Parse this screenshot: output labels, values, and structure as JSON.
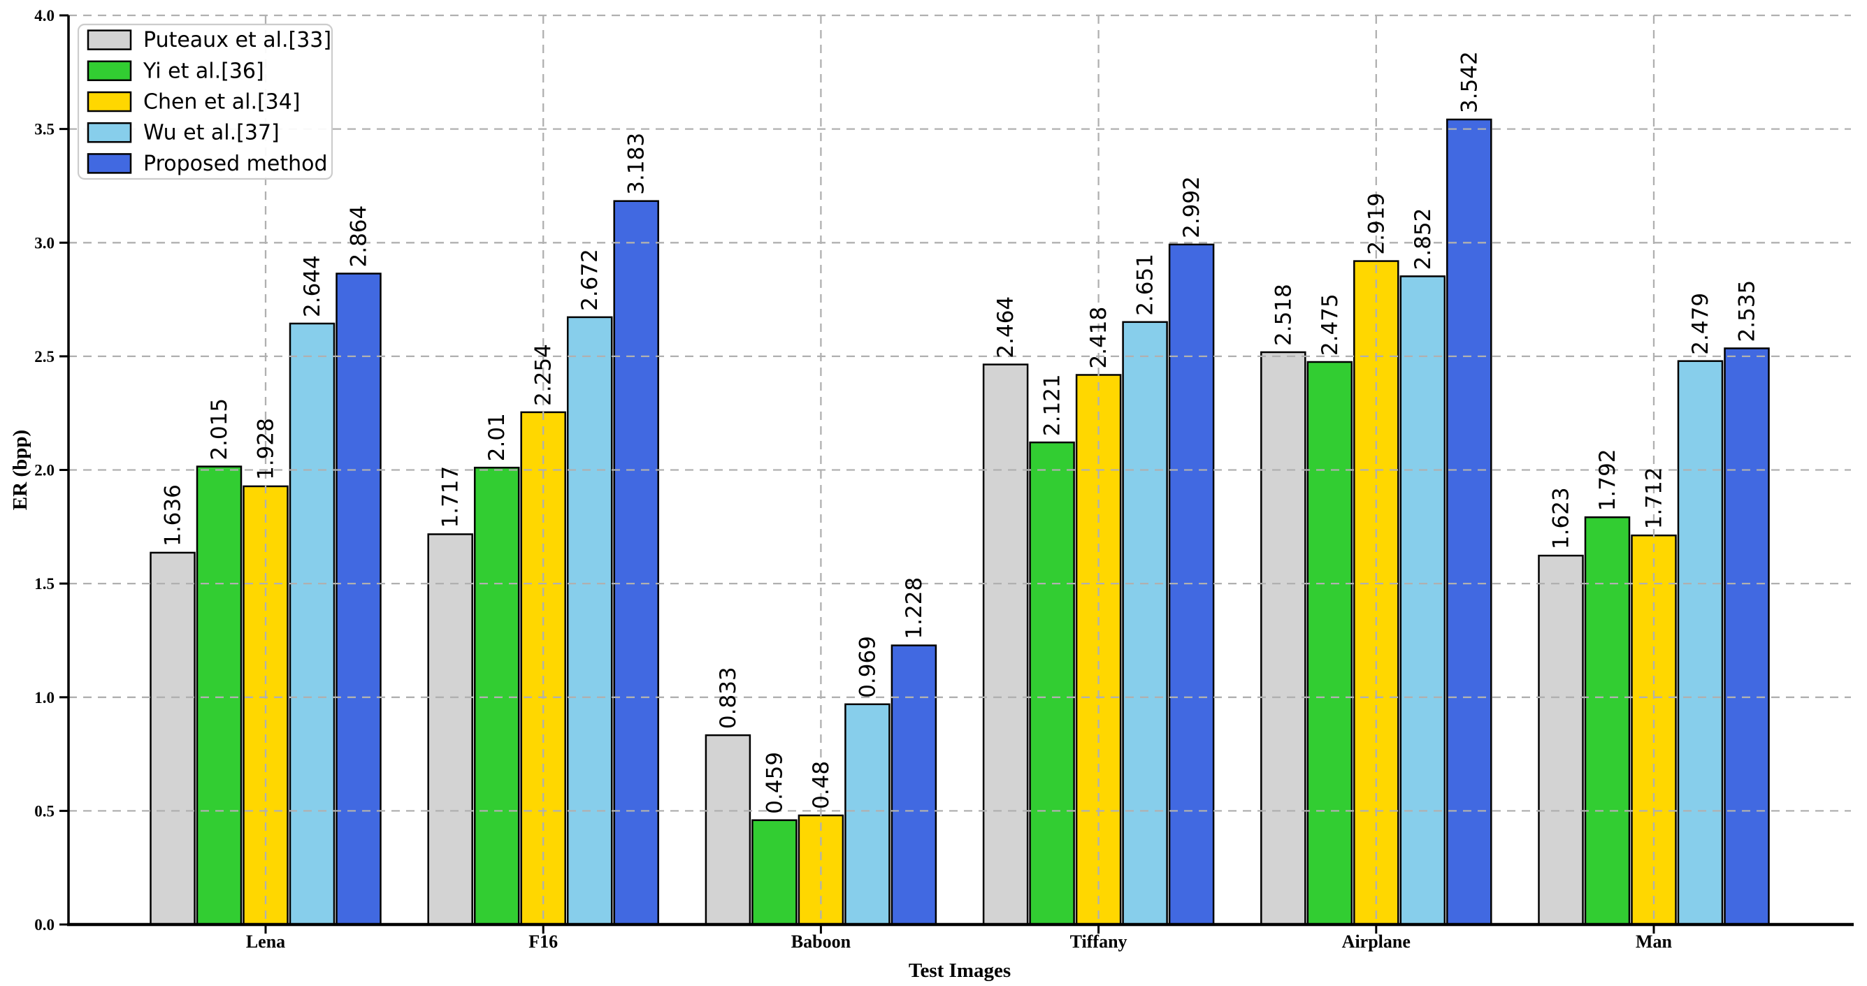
{
  "figure": {
    "background": "#ffffff",
    "plot_background": "#ffffff"
  },
  "chart_data": {
    "type": "bar",
    "title": "",
    "xlabel": "Test Images",
    "ylabel": "ER (bpp)",
    "categories": [
      "Lena",
      "F16",
      "Baboon",
      "Tiffany",
      "Airplane",
      "Man"
    ],
    "series": [
      {
        "name": "Puteaux et al.[33]",
        "color": "#d3d3d3",
        "values": [
          1.636,
          1.717,
          0.833,
          2.464,
          2.518,
          1.623
        ],
        "labels": [
          "1.636",
          "1.717",
          "0.833",
          "2.464",
          "2.518",
          "1.623"
        ]
      },
      {
        "name": "Yi et al.[36]",
        "color": "#32cd32",
        "values": [
          2.015,
          2.01,
          0.459,
          2.121,
          2.475,
          1.792
        ],
        "labels": [
          "2.015",
          "2.01",
          "0.459",
          "2.121",
          "2.475",
          "1.792"
        ]
      },
      {
        "name": "Chen et al.[34]",
        "color": "#ffd700",
        "values": [
          1.928,
          2.254,
          0.48,
          2.418,
          2.919,
          1.712
        ],
        "labels": [
          "1.928",
          "2.254",
          "0.48",
          "2.418",
          "2.919",
          "1.712"
        ]
      },
      {
        "name": "Wu et al.[37]",
        "color": "#87ceeb",
        "values": [
          2.644,
          2.672,
          0.969,
          2.651,
          2.852,
          2.479
        ],
        "labels": [
          "2.644",
          "2.672",
          "0.969",
          "2.651",
          "2.852",
          "2.479"
        ]
      },
      {
        "name": "Proposed method",
        "color": "#4169e1",
        "values": [
          2.864,
          3.183,
          1.228,
          2.992,
          3.542,
          2.535
        ],
        "labels": [
          "2.864",
          "3.183",
          "1.228",
          "2.992",
          "3.542",
          "2.535"
        ]
      }
    ],
    "ylim": [
      0,
      4.0
    ],
    "yticks": {
      "values": [
        0,
        0.5,
        1.0,
        1.5,
        2.0,
        2.5,
        3.0,
        3.5,
        4.0
      ],
      "labels": [
        "0.0",
        "0.5",
        "1.0",
        "1.5",
        "2.0",
        "2.5",
        "3.0",
        "3.5",
        "4.0"
      ]
    },
    "grid": {
      "visible": true,
      "style": "dashed",
      "color": "#b0b0b0",
      "drawn_over_bars": true
    },
    "bar_edge_color": "#000000",
    "legend": {
      "position": "upper-left",
      "entries": [
        "Puteaux et al.[33]",
        "Yi et al.[36]",
        "Chen et al.[34]",
        "Wu et al.[37]",
        "Proposed method"
      ]
    }
  }
}
